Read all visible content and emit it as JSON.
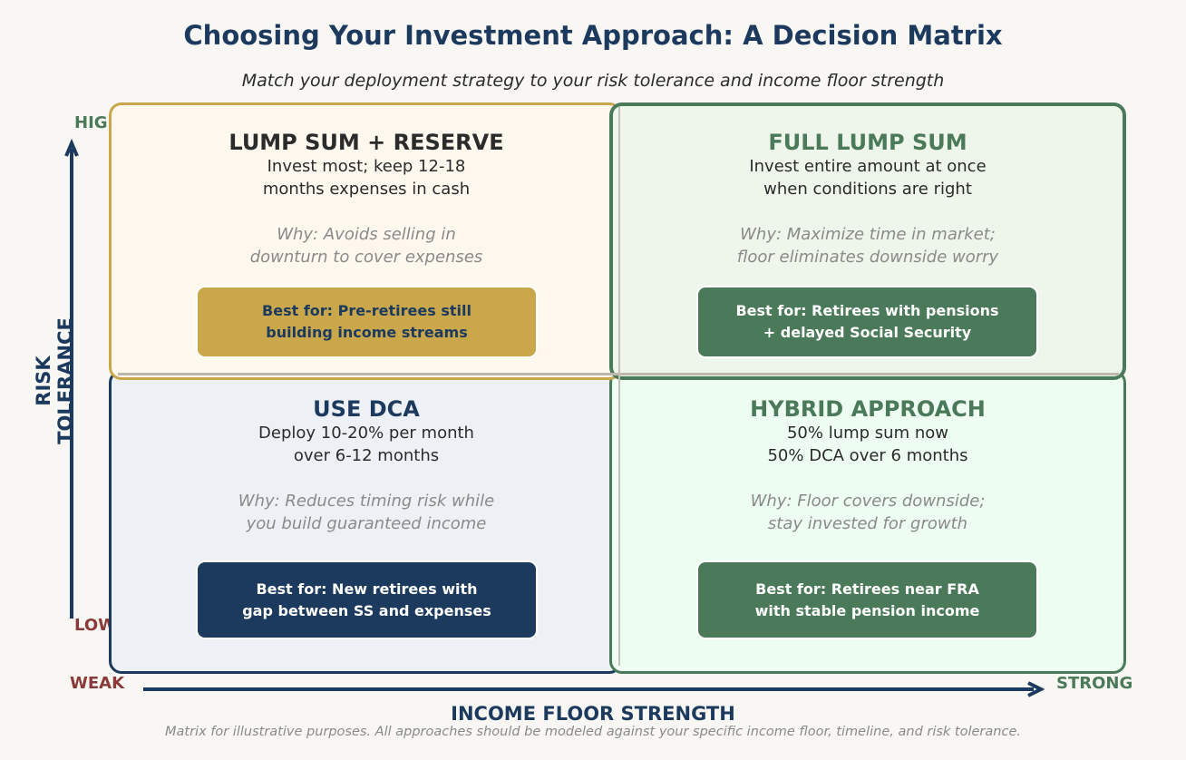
{
  "title": "Choosing Your Investment Approach: A Decision Matrix",
  "subtitle": "Match your deployment strategy to your risk tolerance and income floor strength",
  "y_axis": {
    "label": "RISK\nTOLERANCE",
    "high": "HIGH",
    "low": "LOW"
  },
  "x_axis": {
    "label": "INCOME FLOOR STRENGTH",
    "weak": "WEAK",
    "strong": "STRONG"
  },
  "colors": {
    "navy": "#1c3a5e",
    "gold": "#c9a74a",
    "green": "#4a7a5a",
    "red_label": "#8b3a3a",
    "green_label": "#4a7a5a"
  },
  "quadrants": {
    "top_left": {
      "title": "LUMP SUM + RESERVE",
      "description": "Invest most; keep 12-18\nmonths expenses in cash",
      "why": "Why: Avoids selling in\ndownturn to cover expenses",
      "best_for": "Best for: Pre-retirees still\nbuilding income streams"
    },
    "top_right": {
      "title": "FULL LUMP SUM",
      "description": "Invest entire amount at once\nwhen conditions are right",
      "why": "Why: Maximize time in market;\nfloor eliminates downside worry",
      "best_for": "Best for: Retirees with pensions\n+ delayed Social Security"
    },
    "bottom_left": {
      "title": "USE DCA",
      "description": "Deploy 10-20% per month\nover 6-12 months",
      "why": "Why: Reduces timing risk while\nyou build guaranteed income",
      "best_for": "Best for: New retirees with\ngap between SS and expenses"
    },
    "bottom_right": {
      "title": "HYBRID APPROACH",
      "description": "50% lump sum now\n50% DCA over 6 months",
      "why": "Why: Floor covers downside;\nstay invested for growth",
      "best_for": "Best for: Retirees near FRA\nwith stable pension income"
    }
  },
  "footnote": "Matrix for illustrative purposes. All approaches should be modeled against your specific income floor, timeline, and risk tolerance."
}
